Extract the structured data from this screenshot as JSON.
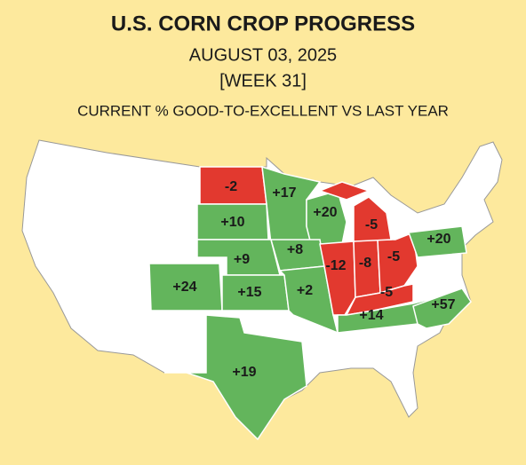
{
  "header": {
    "title": "U.S. CORN CROP PROGRESS",
    "date": "AUGUST 03, 2025",
    "week": "[WEEK 31]",
    "subtitle": "CURRENT % GOOD-TO-EXCELLENT VS LAST YEAR"
  },
  "regions": [
    {
      "label": "-2",
      "color": "#e2392f"
    },
    {
      "label": "+17",
      "color": "#63b55c"
    },
    {
      "label": "+10",
      "color": "#63b55c"
    },
    {
      "label": "+20",
      "color": "#63b55c"
    },
    {
      "label": "+9",
      "color": "#63b55c"
    },
    {
      "label": "+8",
      "color": "#63b55c"
    },
    {
      "label": "+24",
      "color": "#63b55c"
    },
    {
      "label": "+15",
      "color": "#63b55c"
    },
    {
      "label": "+2",
      "color": "#63b55c"
    },
    {
      "label": "-12",
      "color": "#e2392f"
    },
    {
      "label": "-8",
      "color": "#e2392f"
    },
    {
      "label": "-5",
      "color": "#e2392f"
    },
    {
      "label": "-5",
      "color": "#e2392f"
    },
    {
      "label": "-5",
      "color": "#e2392f"
    },
    {
      "label": "+14",
      "color": "#63b55c"
    },
    {
      "label": "+57",
      "color": "#63b55c"
    },
    {
      "label": "+20",
      "color": "#63b55c"
    },
    {
      "label": "+19",
      "color": "#63b55c"
    }
  ]
}
